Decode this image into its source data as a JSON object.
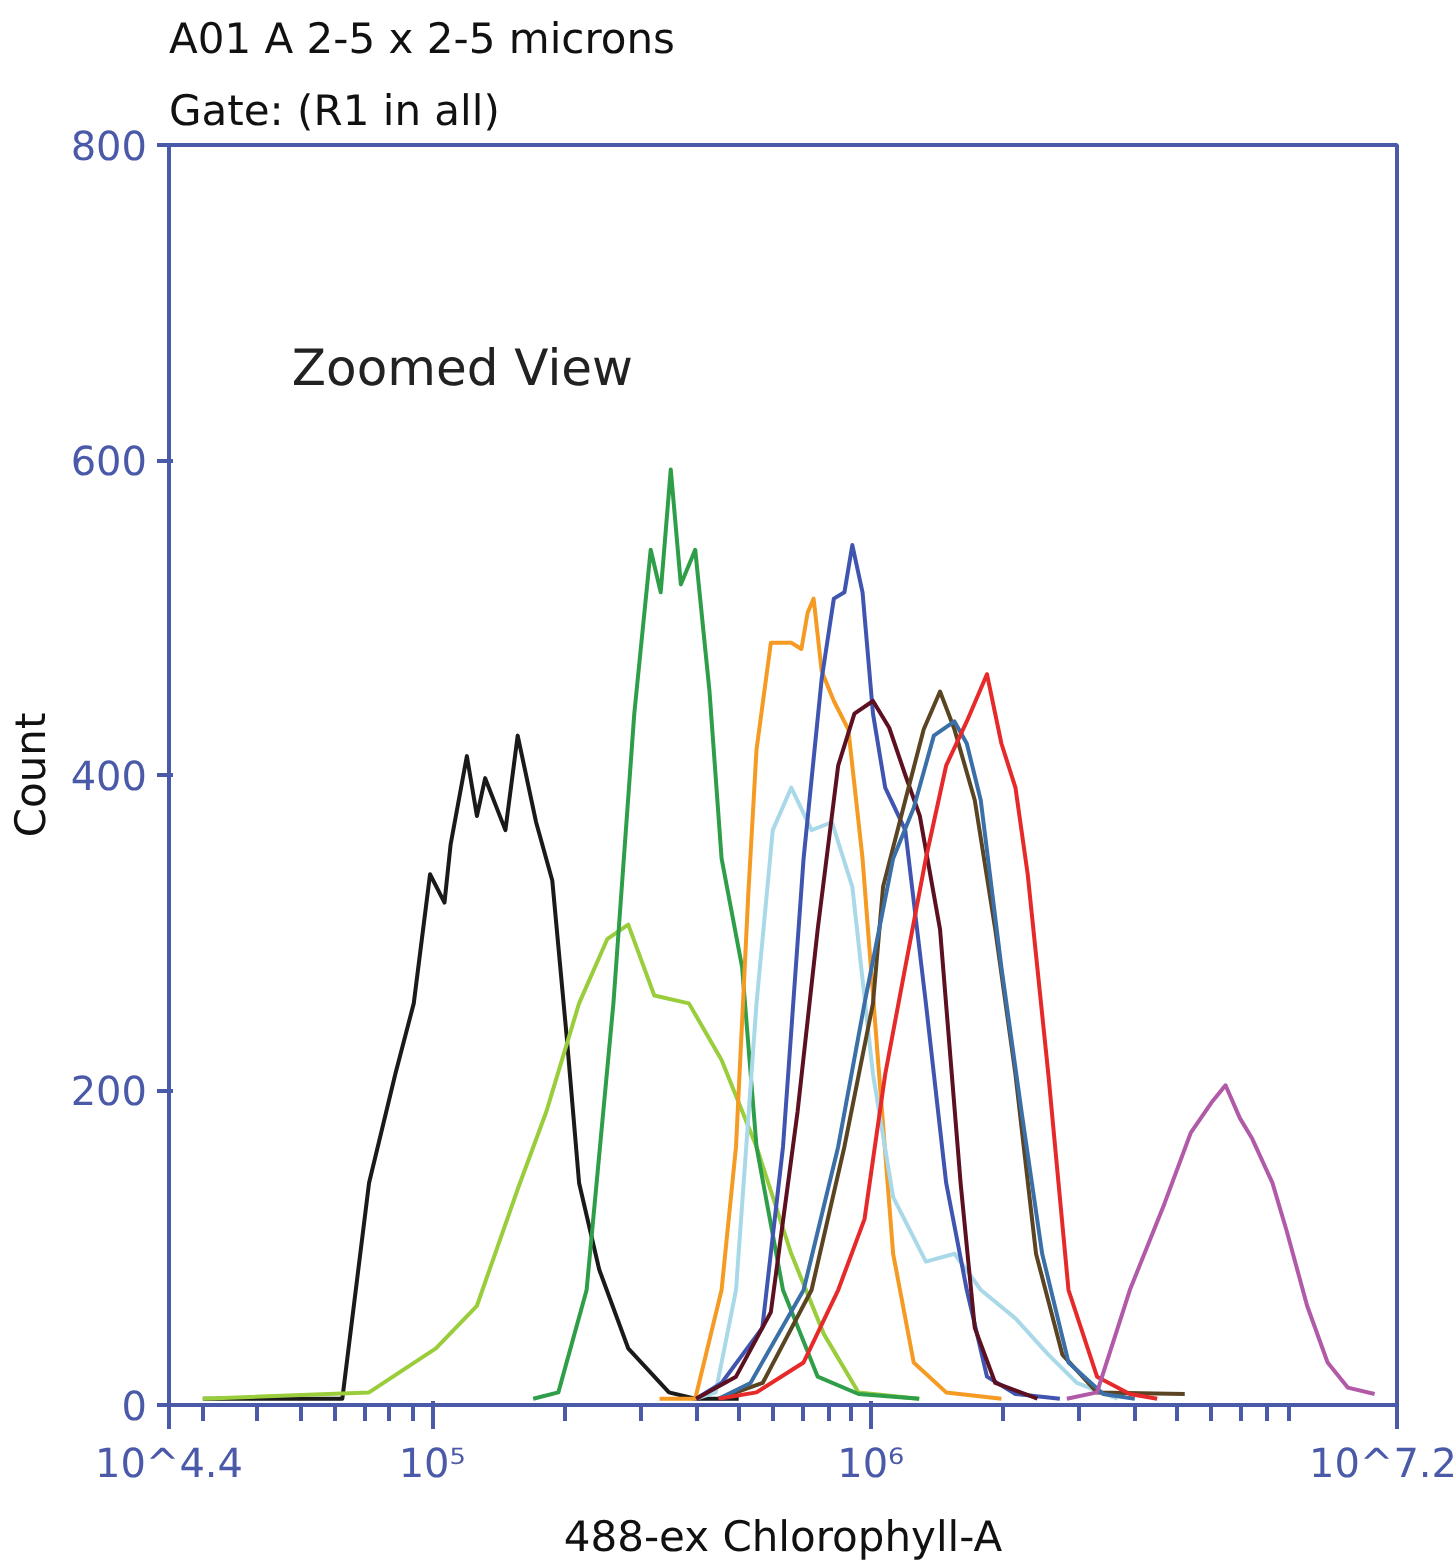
{
  "chart_data": {
    "type": "line",
    "title": "A01 A 2-5 x 2-5 microns",
    "subtitle": "Gate: (R1 in all)",
    "xlabel": "488-ex Chlorophyll-A",
    "ylabel": "Count",
    "annotations": [
      "Zoomed View"
    ],
    "log": "x",
    "grid": false,
    "xlim": [
      25118.86,
      15848931.9
    ],
    "ylim": [
      0,
      800
    ],
    "xticks": [
      {
        "value": 25118.86,
        "label": "10^4.4"
      },
      {
        "value": 100000,
        "label": "10⁵"
      },
      {
        "value": 1000000,
        "label": "10⁶"
      },
      {
        "value": 15848931.9,
        "label": "10^7.2"
      }
    ],
    "yticks": [
      0,
      200,
      400,
      600,
      800
    ],
    "series": [
      {
        "color": "#1a1a1a",
        "x": [
          30000,
          62400,
          71800,
          82400,
          90800,
          98900,
          106700,
          110200,
          120000,
          126500,
          132100,
          146900,
          156700,
          172600,
          187900,
          202800,
          216300,
          240400,
          279900,
          346700,
          398100,
          500000
        ],
        "values": [
          4,
          4,
          141,
          210,
          255,
          337,
          319,
          356,
          412,
          374,
          398,
          365,
          425,
          370,
          333,
          233,
          141,
          86,
          36,
          8,
          4,
          4
        ]
      },
      {
        "color": "#9acd3c",
        "x": [
          30000,
          71800,
          102000,
          126500,
          156700,
          182000,
          216300,
          251000,
          280000,
          321000,
          385000,
          457000,
          549000,
          659000,
          782000,
          938000,
          1290000
        ],
        "values": [
          4,
          8,
          36,
          63,
          137,
          186,
          255,
          296,
          305,
          260,
          255,
          219,
          164,
          96,
          45,
          8,
          4
        ]
      },
      {
        "color": "#2e9e48",
        "x": [
          170000,
          194000,
          225000,
          259000,
          289000,
          315000,
          332000,
          350000,
          369000,
          398000,
          429000,
          457000,
          509000,
          549000,
          631000,
          757000,
          938000,
          1290000
        ],
        "values": [
          4,
          8,
          73,
          255,
          439,
          543,
          516,
          594,
          521,
          543,
          453,
          347,
          278,
          164,
          73,
          18,
          7,
          4
        ]
      },
      {
        "color": "#f59a23",
        "x": [
          330000,
          398000,
          457000,
          493000,
          526000,
          549000,
          592000,
          659000,
          695000,
          718000,
          741000,
          773000,
          824000,
          889000,
          958000,
          1045000,
          1125000,
          1253000,
          1486000,
          1986000
        ],
        "values": [
          4,
          4,
          73,
          164,
          325,
          416,
          484,
          484,
          480,
          503,
          512,
          466,
          447,
          429,
          347,
          210,
          96,
          27,
          8,
          4
        ]
      },
      {
        "color": "#a9d9e8",
        "x": [
          400000,
          443000,
          493000,
          549000,
          598000,
          659000,
          733000,
          816000,
          908000,
          1012000,
          1125000,
          1336000,
          1553000,
          1784000,
          2138000,
          2541000,
          2951000,
          3655000
        ],
        "values": [
          4,
          8,
          73,
          255,
          365,
          392,
          365,
          370,
          329,
          210,
          132,
          91,
          96,
          73,
          55,
          32,
          14,
          4
        ]
      },
      {
        "color": "#3f55b0",
        "x": [
          400000,
          457000,
          566000,
          631000,
          703000,
          773000,
          824000,
          871000,
          908000,
          958000,
          1012000,
          1079000,
          1199000,
          1336000,
          1486000,
          1656000,
          1841000,
          2138000,
          2700000
        ],
        "values": [
          4,
          14,
          49,
          164,
          347,
          461,
          512,
          516,
          546,
          516,
          439,
          392,
          365,
          255,
          141,
          73,
          18,
          7,
          4
        ]
      },
      {
        "color": "#5c1020",
        "x": [
          400000,
          493000,
          592000,
          681000,
          757000,
          843000,
          918000,
          1012000,
          1102000,
          1199000,
          1294000,
          1439000,
          1603000,
          1727000,
          1923000,
          2400000
        ],
        "values": [
          4,
          18,
          59,
          186,
          302,
          406,
          439,
          447,
          430,
          400,
          374,
          302,
          141,
          49,
          14,
          4
        ]
      },
      {
        "color": "#5a4422",
        "x": [
          450000,
          567000,
          733000,
          871000,
          1012000,
          1067000,
          1199000,
          1321000,
          1439000,
          1552000,
          1727000,
          1923000,
          2138000,
          2382000,
          2735000,
          3281000,
          5200000
        ],
        "values": [
          4,
          14,
          73,
          164,
          255,
          329,
          384,
          429,
          453,
          429,
          384,
          302,
          210,
          96,
          32,
          8,
          7
        ]
      },
      {
        "color": "#3b6fa8",
        "x": [
          450000,
          532000,
          703000,
          843000,
          968000,
          1125000,
          1253000,
          1393000,
          1552000,
          1656000,
          1782000,
          1986000,
          2208000,
          2460000,
          2825000,
          3388000,
          4000000
        ],
        "values": [
          4,
          14,
          73,
          164,
          255,
          347,
          379,
          425,
          434,
          420,
          384,
          278,
          186,
          96,
          27,
          7,
          4
        ]
      },
      {
        "color": "#e62a2a",
        "x": [
          450000,
          549000,
          703000,
          843000,
          968000,
          1079000,
          1199000,
          1336000,
          1486000,
          1656000,
          1841000,
          1986000,
          2138000,
          2280000,
          2541000,
          2825000,
          3281000,
          3898000,
          4500000
        ],
        "values": [
          4,
          8,
          27,
          73,
          118,
          210,
          278,
          347,
          406,
          434,
          464,
          420,
          392,
          337,
          210,
          73,
          18,
          7,
          4
        ]
      },
      {
        "color": "#b05aa8",
        "x": [
          2800000,
          3281000,
          3898000,
          4677000,
          5370000,
          5984000,
          6442000,
          6950000,
          7413000,
          8241000,
          8892000,
          9886000,
          11010000,
          12250000,
          14090000
        ],
        "values": [
          4,
          8,
          73,
          128,
          173,
          192,
          203,
          182,
          169,
          141,
          110,
          63,
          27,
          11,
          7
        ]
      }
    ]
  }
}
